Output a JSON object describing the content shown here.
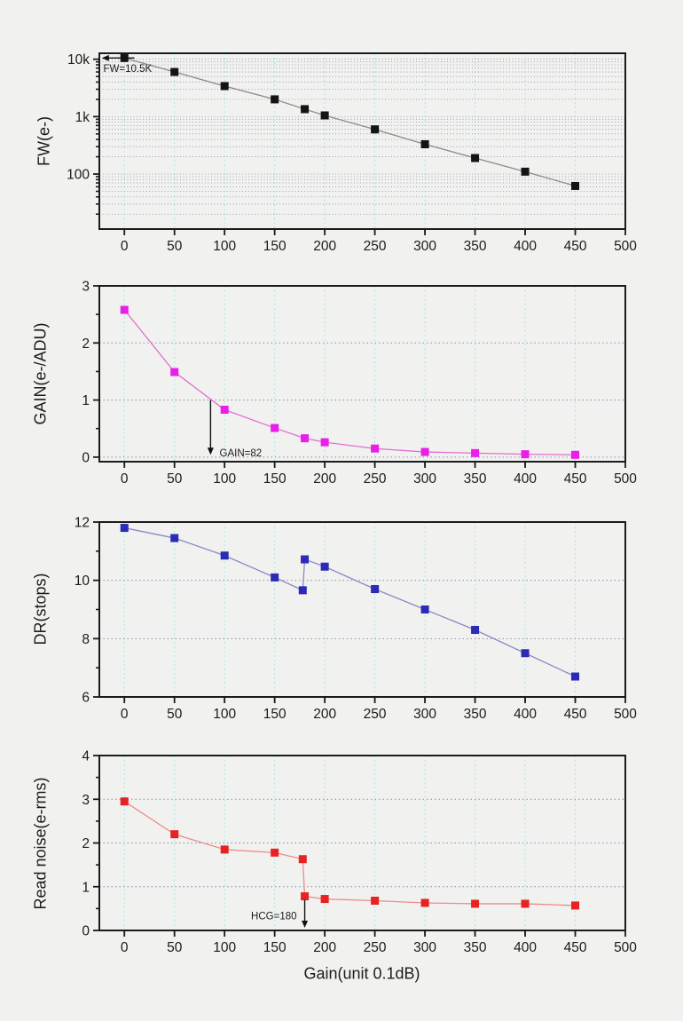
{
  "figure": {
    "xlabel": "Gain(unit 0.1dB)",
    "background": "#f1f1ef",
    "xlim": [
      -25,
      500
    ],
    "xticks": [
      0,
      50,
      100,
      150,
      200,
      250,
      300,
      350,
      400,
      450,
      500
    ],
    "x_minor_step": 25,
    "grid_x_values": [
      0,
      50,
      100,
      150,
      200,
      250,
      300,
      350,
      400,
      450
    ],
    "grid_color_vertical": "#a8eae5",
    "grid_color_horizontal": "#8b8bb0",
    "frame_color": "#1b1b1b"
  },
  "chart_data": [
    {
      "type": "line",
      "id": "fw",
      "ylabel": "FW(e-)",
      "yscale": "log",
      "ylim": [
        11,
        12700
      ],
      "x": [
        0,
        50,
        100,
        150,
        180,
        200,
        250,
        300,
        350,
        400,
        450
      ],
      "y": [
        10500,
        6000,
        3400,
        2000,
        1350,
        1050,
        600,
        330,
        190,
        110,
        62
      ],
      "yticks": [
        {
          "v": 100,
          "label": "100"
        },
        {
          "v": 1000,
          "label": "1k"
        },
        {
          "v": 10000,
          "label": "10k"
        }
      ],
      "yticks_minor": [
        20,
        30,
        40,
        50,
        60,
        70,
        80,
        90,
        200,
        300,
        400,
        500,
        600,
        700,
        800,
        900,
        2000,
        3000,
        4000,
        5000,
        6000,
        7000,
        8000,
        9000
      ],
      "grid_y": [
        20,
        30,
        40,
        50,
        60,
        70,
        80,
        90,
        100,
        200,
        300,
        400,
        500,
        600,
        700,
        800,
        900,
        1000,
        2000,
        3000,
        4000,
        5000,
        6000,
        7000,
        8000,
        9000,
        10000
      ],
      "line_color": "#8a8a8a",
      "marker_color": "#141414",
      "annotation": {
        "text": "FW=10.5K",
        "arrow": [
          10,
          10500,
          -22.5,
          10500
        ],
        "label": [
          -21,
          6000
        ],
        "anchor": "start"
      }
    },
    {
      "type": "line",
      "id": "gain",
      "ylabel": "GAIN(e-/ADU)",
      "yscale": "linear",
      "ylim": [
        -0.08,
        3.0
      ],
      "x": [
        0,
        50,
        100,
        150,
        180,
        200,
        250,
        300,
        350,
        400,
        450
      ],
      "y": [
        2.58,
        1.49,
        0.83,
        0.51,
        0.33,
        0.26,
        0.15,
        0.09,
        0.07,
        0.05,
        0.04
      ],
      "yticks": [
        {
          "v": 0,
          "label": "0"
        },
        {
          "v": 1,
          "label": "1"
        },
        {
          "v": 2,
          "label": "2"
        },
        {
          "v": 3,
          "label": "3"
        }
      ],
      "yticks_minor": [
        0.5,
        1.5,
        2.5
      ],
      "grid_y": [
        0,
        1,
        2
      ],
      "line_color": "#e06ed1",
      "marker_color": "#e91ee9",
      "annotation": {
        "text": "GAIN=82",
        "arrow": [
          86,
          1.0,
          86,
          0.04
        ],
        "label": [
          95,
          0.015
        ],
        "anchor": "start"
      }
    },
    {
      "type": "line",
      "id": "dr",
      "ylabel": "DR(stops)",
      "yscale": "linear",
      "ylim": [
        6,
        12
      ],
      "x": [
        0,
        50,
        100,
        150,
        178,
        180,
        200,
        250,
        300,
        350,
        400,
        450
      ],
      "y": [
        11.8,
        11.45,
        10.85,
        10.1,
        9.66,
        10.72,
        10.47,
        9.7,
        9.0,
        8.3,
        7.5,
        6.7
      ],
      "yticks": [
        {
          "v": 6,
          "label": "6"
        },
        {
          "v": 8,
          "label": "8"
        },
        {
          "v": 10,
          "label": "10"
        },
        {
          "v": 12,
          "label": "12"
        }
      ],
      "yticks_minor": [
        7,
        9,
        11
      ],
      "grid_y": [
        8,
        10
      ],
      "line_color": "#8a8ac6",
      "marker_color": "#2b2bb5"
    },
    {
      "type": "line",
      "id": "readnoise",
      "ylabel": "Read noise(e-rms)",
      "yscale": "linear",
      "ylim": [
        0,
        4
      ],
      "x": [
        0,
        50,
        100,
        150,
        178,
        180,
        200,
        250,
        300,
        350,
        400,
        450
      ],
      "y": [
        2.95,
        2.2,
        1.85,
        1.78,
        1.63,
        0.78,
        0.72,
        0.68,
        0.63,
        0.61,
        0.61,
        0.57
      ],
      "yticks": [
        {
          "v": 0,
          "label": "0"
        },
        {
          "v": 1,
          "label": "1"
        },
        {
          "v": 2,
          "label": "2"
        },
        {
          "v": 3,
          "label": "3"
        },
        {
          "v": 4,
          "label": "4"
        }
      ],
      "yticks_minor": [
        0.5,
        1.5,
        2.5,
        3.5
      ],
      "grid_y": [
        1,
        2,
        3
      ],
      "line_color": "#ea8d8d",
      "marker_color": "#e62222",
      "annotation": {
        "text": "HCG=180",
        "arrow": [
          180,
          0.7,
          180,
          0.06
        ],
        "label": [
          172,
          0.25
        ],
        "anchor": "end"
      }
    }
  ]
}
